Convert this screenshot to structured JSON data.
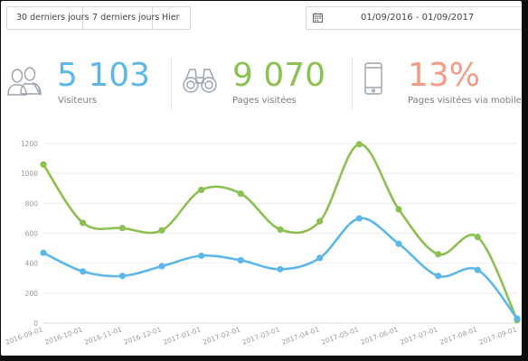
{
  "date_ranges": {
    "last_30": "30 derniers jours",
    "last_7": "7 derniers jours",
    "yesterday": "Hier"
  },
  "date_picker": {
    "icon": "calendar-icon",
    "value": "01/09/2016 - 01/09/2017"
  },
  "stats": {
    "visitors": {
      "icon": "users-icon",
      "value": "5 103",
      "label": "Visiteurs",
      "color": "#5db7e8"
    },
    "pages": {
      "icon": "binoculars-icon",
      "value": "9 070",
      "label": "Pages visitées",
      "color": "#8cc152"
    },
    "mobile": {
      "icon": "smartphone-icon",
      "value": "13%",
      "label": "Pages visitées via mobile",
      "color": "#f49a86"
    }
  },
  "chart_data": {
    "type": "line",
    "title": "",
    "xlabel": "",
    "ylabel": "",
    "ylim": [
      0,
      1200
    ],
    "yticks": [
      0,
      200,
      400,
      600,
      800,
      1000,
      1200
    ],
    "grid": true,
    "categories": [
      "2016-09-01",
      "2016-10-01",
      "2016-11-01",
      "2016-12-01",
      "2017-01-01",
      "2017-02-01",
      "2017-03-01",
      "2017-04-01",
      "2017-05-01",
      "2017-06-01",
      "2017-07-01",
      "2017-08-01",
      "2017-09-01"
    ],
    "series": [
      {
        "color": "#8cc152",
        "values": [
          1060,
          670,
          635,
          620,
          890,
          865,
          625,
          680,
          1195,
          760,
          460,
          575,
          20
        ]
      },
      {
        "color": "#5db7e8",
        "values": [
          470,
          345,
          315,
          380,
          450,
          420,
          360,
          435,
          700,
          530,
          315,
          355,
          30
        ]
      }
    ]
  }
}
